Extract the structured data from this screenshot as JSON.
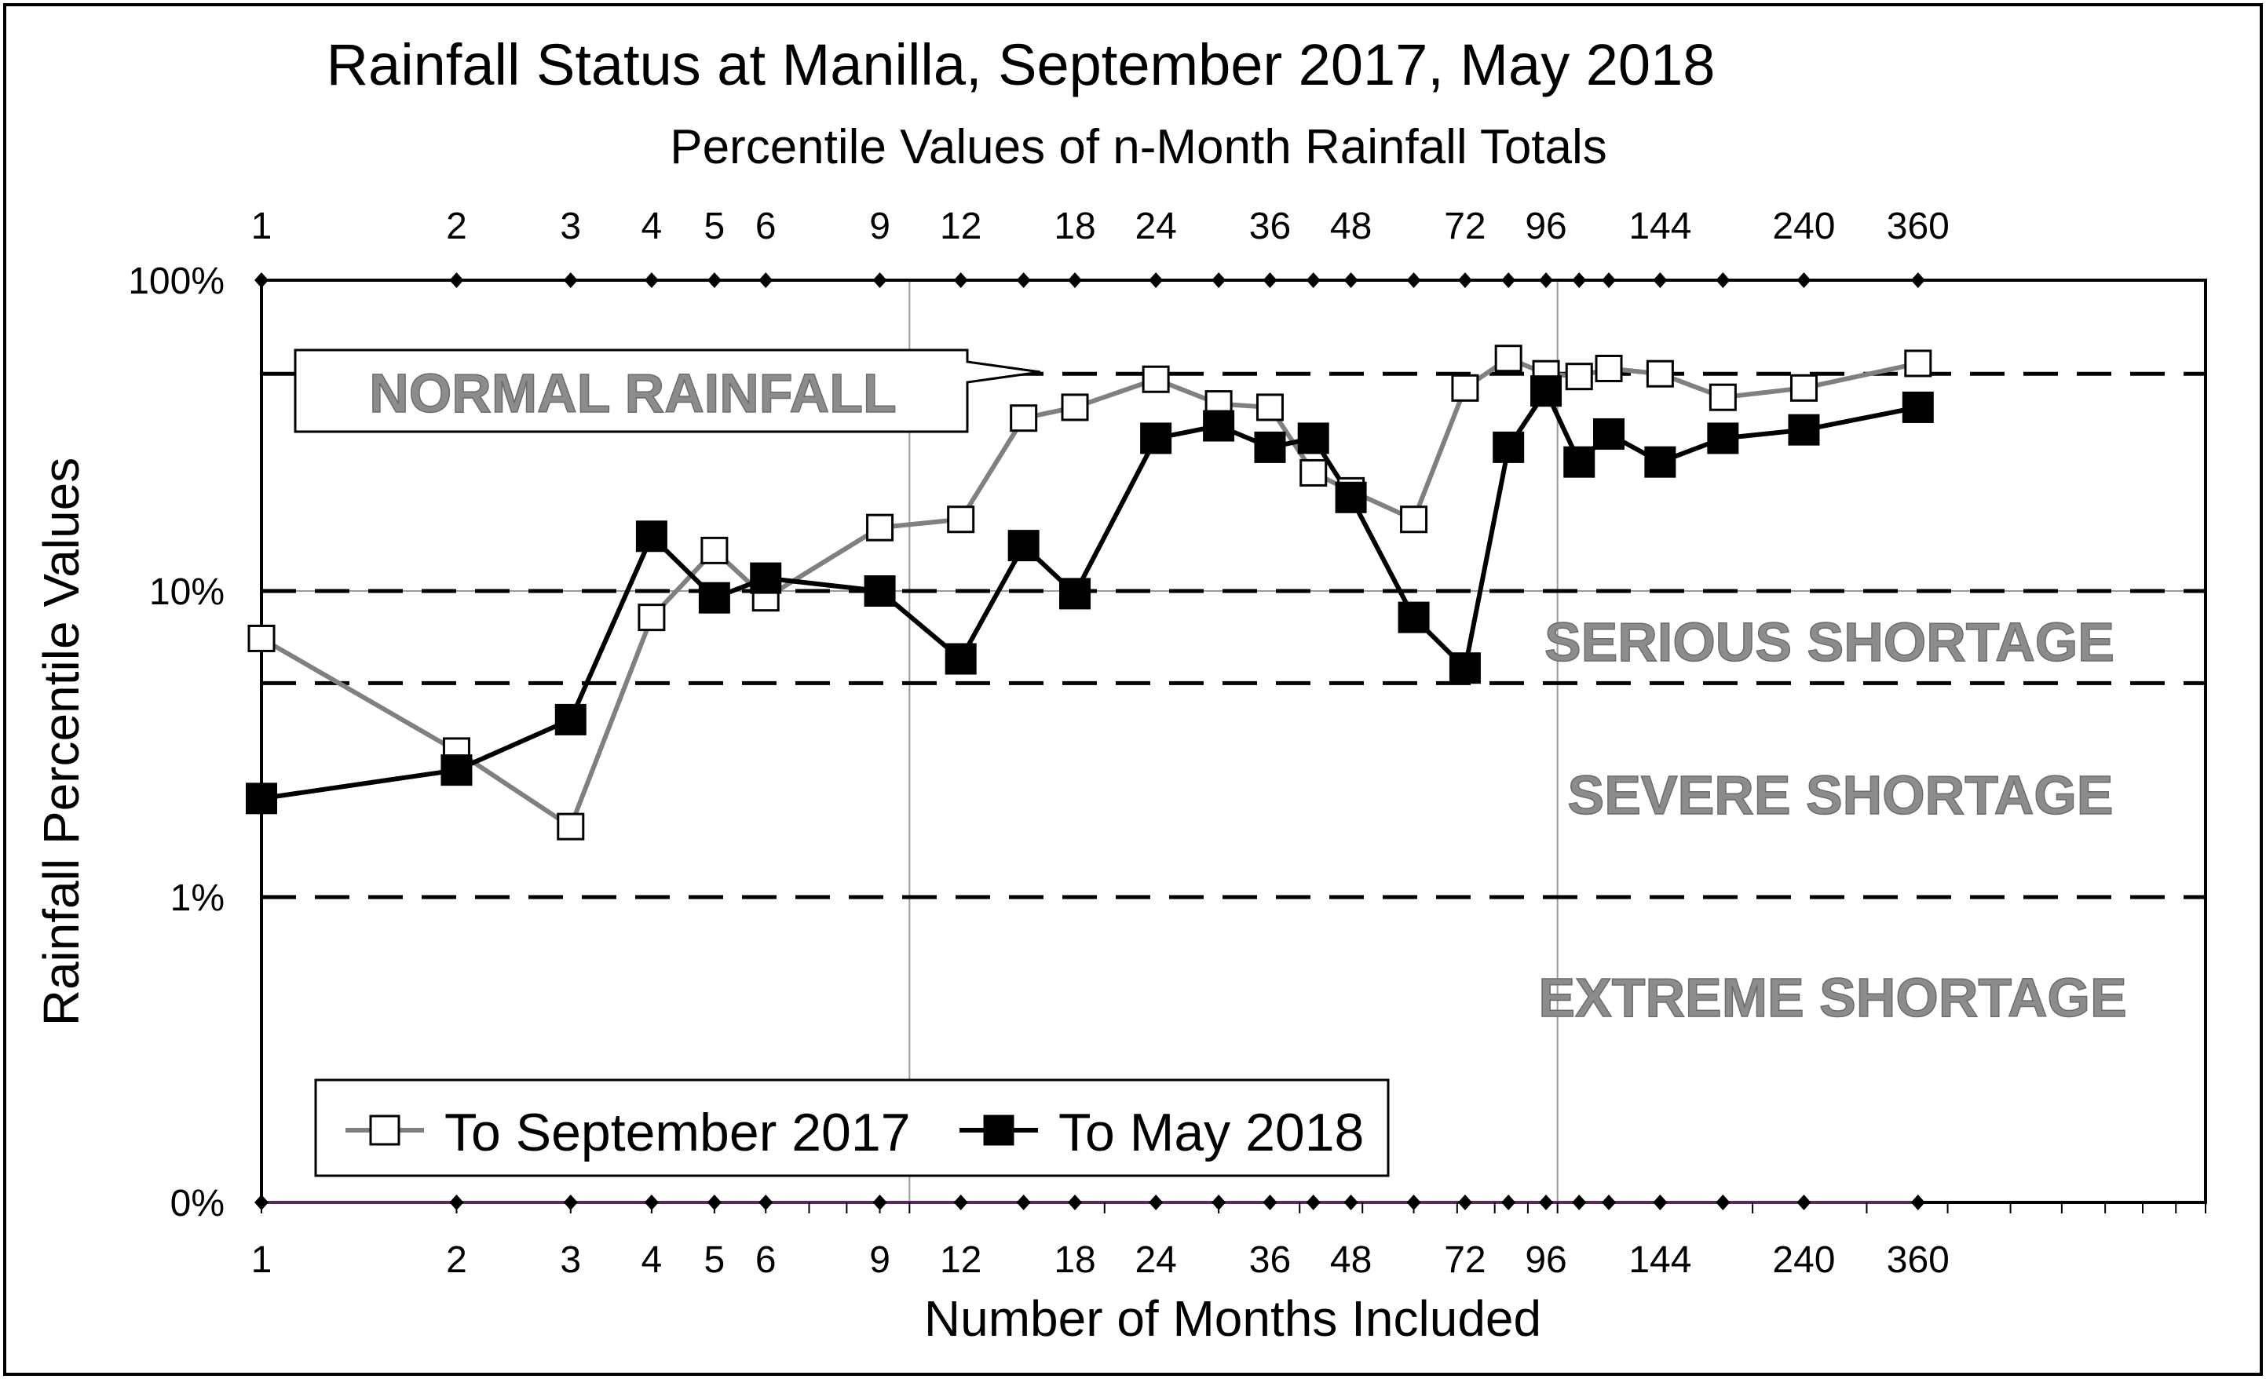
{
  "chart_data": {
    "type": "line",
    "title": "Rainfall Status at Manilla, September 2017, May 2018",
    "subtitle": "Percentile Values of n-Month Rainfall  Totals",
    "xlabel": "Number of Months Included",
    "ylabel": "Rainfall Percentile Values",
    "x_scale": "log",
    "x_tick_labels": [
      "1",
      "2",
      "3",
      "4",
      "5",
      "6",
      "9",
      "12",
      "18",
      "24",
      "36",
      "48",
      "72",
      "96",
      "144",
      "240",
      "360"
    ],
    "y_tick_labels": [
      "0%",
      "1%",
      "10%",
      "100%"
    ],
    "y_scale": "log-odds percentile",
    "zones": [
      {
        "label": "NORMAL RAINFALL",
        "threshold_percent": 50
      },
      {
        "label": "SERIOUS SHORTAGE",
        "range_percent": [
          5,
          10
        ]
      },
      {
        "label": "SEVERE SHORTAGE",
        "range_percent": [
          1,
          5
        ]
      },
      {
        "label": "EXTREME SHORTAGE",
        "range_percent": [
          0,
          1
        ]
      }
    ],
    "dashed_lines_percent": [
      50,
      10,
      5,
      1
    ],
    "series": [
      {
        "name": "To September 2017",
        "color": "#808080",
        "marker": "open-square",
        "points": [
          {
            "x": 1,
            "y": 7
          },
          {
            "x": 2,
            "y": 3
          },
          {
            "x": 3,
            "y": 1.7
          },
          {
            "x": 4,
            "y": 8.2
          },
          {
            "x": 5,
            "y": 13.5
          },
          {
            "x": 6,
            "y": 9.5
          },
          {
            "x": 9,
            "y": 16
          },
          {
            "x": 12,
            "y": 17
          },
          {
            "x": 15,
            "y": 36
          },
          {
            "x": 18,
            "y": 39
          },
          {
            "x": 24,
            "y": 48
          },
          {
            "x": 30,
            "y": 40
          },
          {
            "x": 36,
            "y": 39
          },
          {
            "x": 42,
            "y": 24
          },
          {
            "x": 48,
            "y": 21
          },
          {
            "x": 60,
            "y": 17
          },
          {
            "x": 72,
            "y": 45
          },
          {
            "x": 84,
            "y": 56
          },
          {
            "x": 96,
            "y": 50
          },
          {
            "x": 108,
            "y": 49
          },
          {
            "x": 120,
            "y": 52
          },
          {
            "x": 144,
            "y": 50
          },
          {
            "x": 180,
            "y": 42
          },
          {
            "x": 240,
            "y": 45
          },
          {
            "x": 360,
            "y": 54
          }
        ]
      },
      {
        "name": "To May 2018",
        "color": "#000000",
        "marker": "filled-square",
        "points": [
          {
            "x": 1,
            "y": 2.1
          },
          {
            "x": 2,
            "y": 2.6
          },
          {
            "x": 3,
            "y": 3.8
          },
          {
            "x": 4,
            "y": 15
          },
          {
            "x": 5,
            "y": 9.5
          },
          {
            "x": 6,
            "y": 11
          },
          {
            "x": 9,
            "y": 10
          },
          {
            "x": 12,
            "y": 6
          },
          {
            "x": 15,
            "y": 14
          },
          {
            "x": 18,
            "y": 9.8
          },
          {
            "x": 24,
            "y": 31
          },
          {
            "x": 30,
            "y": 34
          },
          {
            "x": 36,
            "y": 29
          },
          {
            "x": 42,
            "y": 31
          },
          {
            "x": 48,
            "y": 20
          },
          {
            "x": 60,
            "y": 8.2
          },
          {
            "x": 72,
            "y": 5.6
          },
          {
            "x": 84,
            "y": 29
          },
          {
            "x": 96,
            "y": 44
          },
          {
            "x": 108,
            "y": 26
          },
          {
            "x": 120,
            "y": 32
          },
          {
            "x": 144,
            "y": 26
          },
          {
            "x": 180,
            "y": 31
          },
          {
            "x": 240,
            "y": 33
          },
          {
            "x": 360,
            "y": 39
          }
        ]
      }
    ],
    "legend_position": "bottom-left"
  }
}
